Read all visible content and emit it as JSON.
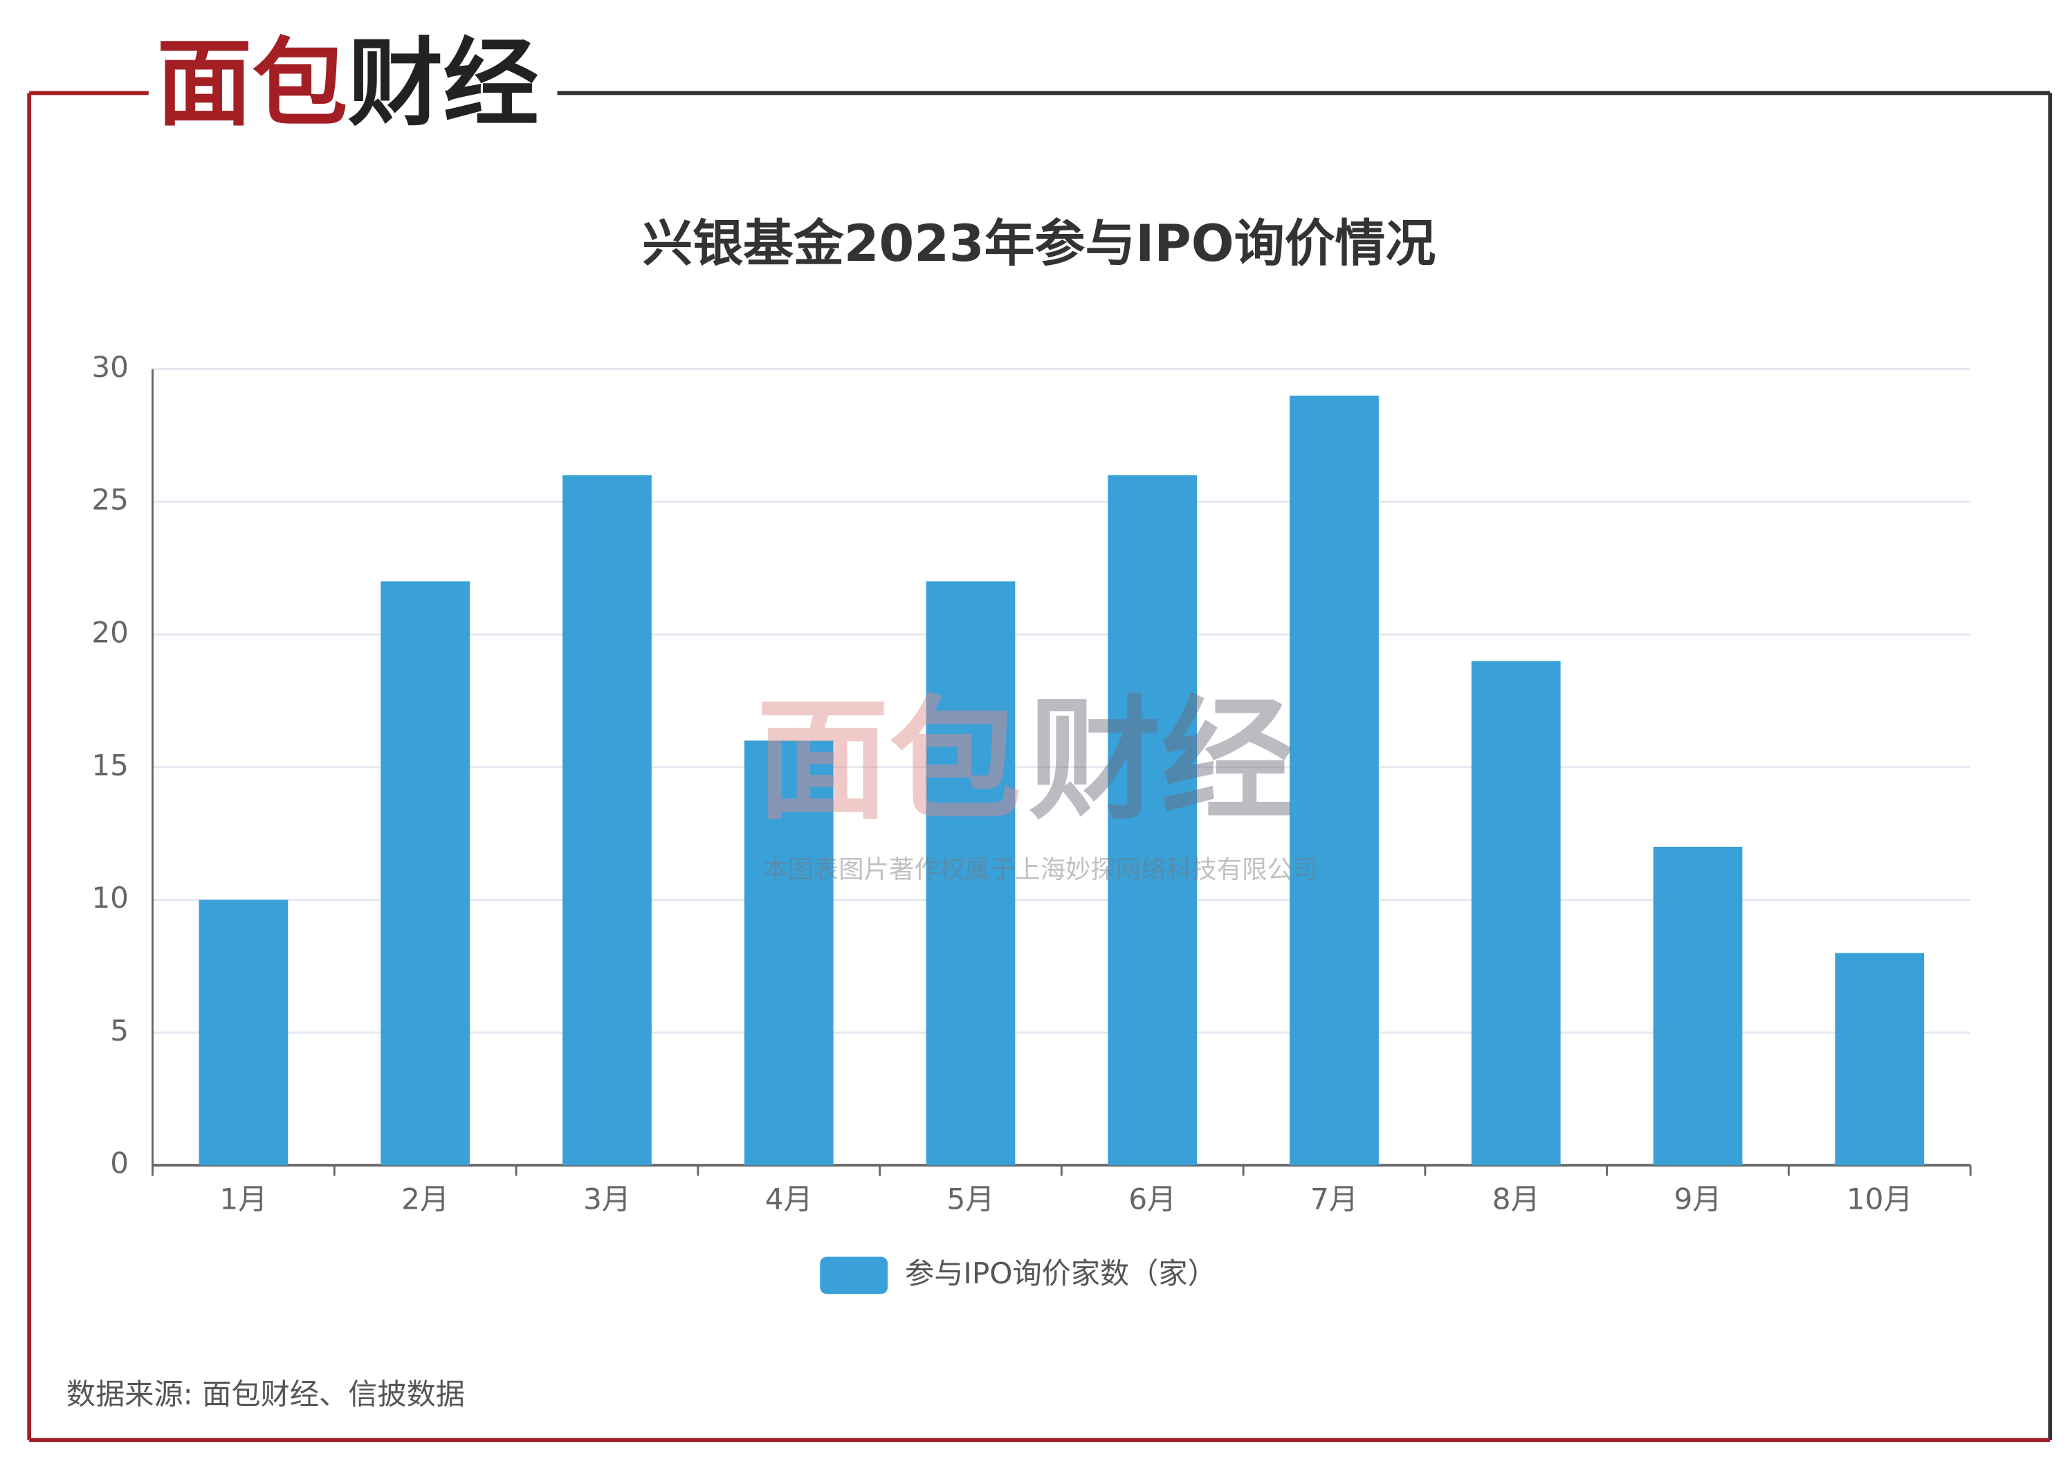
{
  "logo": [
    "面包",
    "财经"
  ],
  "watermark": {
    "logo": [
      "面包",
      "财经"
    ],
    "text": "本图表图片著作权属于上海妙探网络科技有限公司"
  },
  "source": "数据来源: 面包财经、信披数据",
  "chart_data": {
    "type": "bar",
    "title": "兴银基金2023年参与IPO询价情况",
    "categories": [
      "1月",
      "2月",
      "3月",
      "4月",
      "5月",
      "6月",
      "7月",
      "8月",
      "9月",
      "10月"
    ],
    "series": [
      {
        "name": "参与IPO询价家数（家）",
        "color": "#3aa0d8",
        "values": [
          10,
          22,
          26,
          16,
          22,
          26,
          29,
          19,
          12,
          8
        ]
      }
    ],
    "ylim": [
      0,
      30
    ],
    "yticks": [
      0,
      5,
      10,
      15,
      20,
      25,
      30
    ],
    "grid": true,
    "legend": "bottom"
  }
}
